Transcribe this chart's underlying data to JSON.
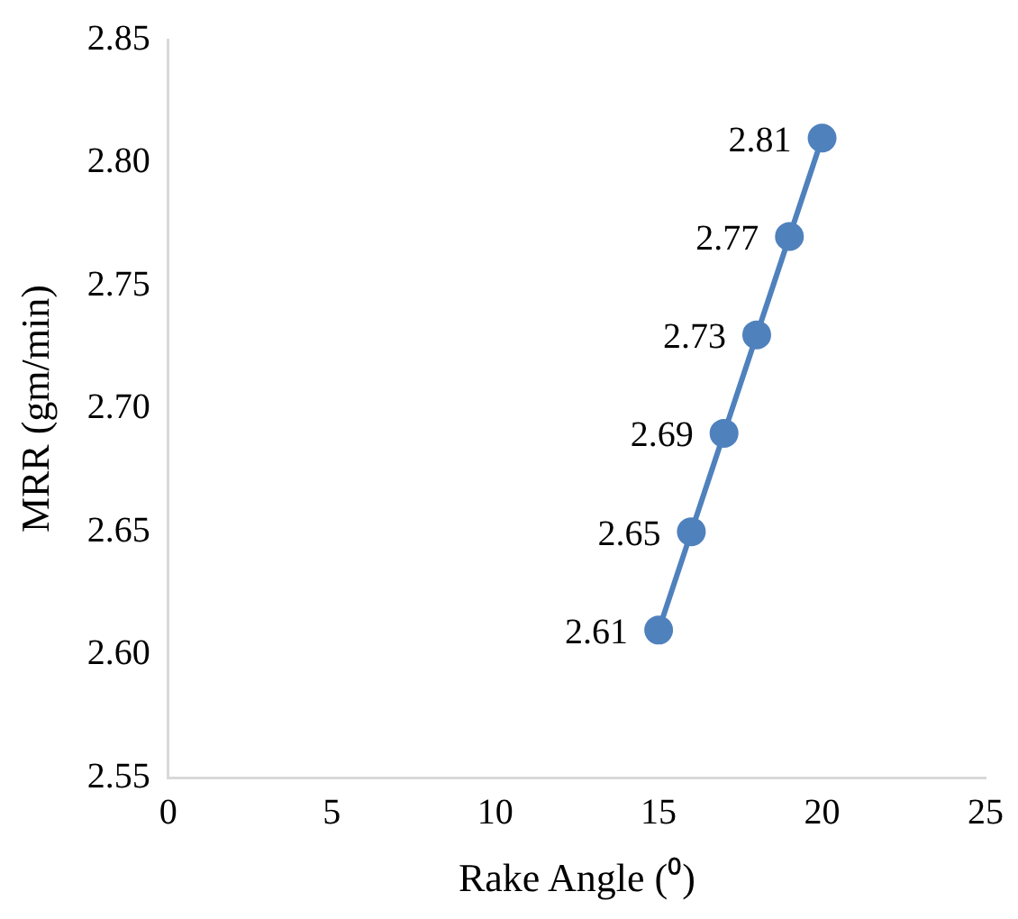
{
  "chart_data": {
    "type": "line",
    "xlabel": "Rake Angle (⁰)",
    "ylabel": "MRR (gm/min)",
    "x": [
      15,
      16,
      17,
      18,
      19,
      20
    ],
    "series": [
      {
        "color": "#4f81bd",
        "values": [
          2.61,
          2.65,
          2.69,
          2.73,
          2.77,
          2.81
        ]
      }
    ],
    "xlim": [
      0,
      25
    ],
    "xticks": [
      0,
      5,
      10,
      15,
      20,
      25
    ],
    "ylim": [
      2.55,
      2.85
    ],
    "yticks": [
      2.55,
      {
        "value": 2.6,
        "label": "2.60"
      },
      2.65,
      {
        "value": 2.7,
        "label": "2.70"
      },
      2.75,
      {
        "value": 2.8,
        "label": "2.80"
      },
      2.85
    ],
    "grid": false,
    "legend": false,
    "marker": "circle",
    "line_style": "solid",
    "data_labels": true
  }
}
